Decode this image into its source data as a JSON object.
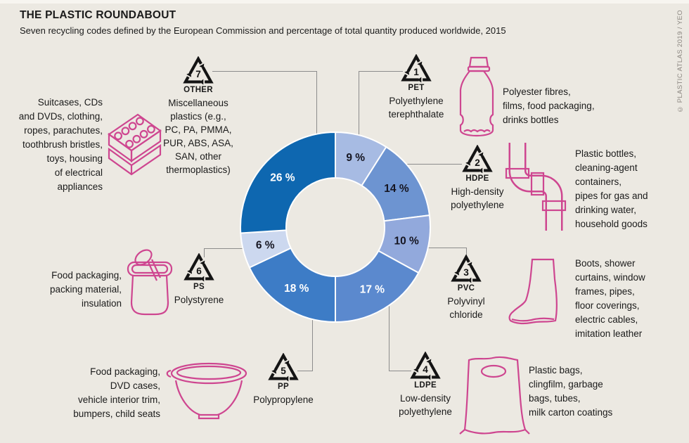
{
  "header": {
    "title": "THE PLASTIC ROUNDABOUT",
    "subtitle": "Seven recycling codes defined by the European Commission and percentage of total quantity produced worldwide, 2015"
  },
  "credit": "© PLASTIC ATLAS 2019 / YEO",
  "colors": {
    "background": "#ECE9E2",
    "illustration_pink": "#CE4690",
    "symbol_black": "#141414",
    "connector_gray": "#8C8C8C",
    "text": "#1A1A1A",
    "segment_gap": "#FFFFFF"
  },
  "chart_data": {
    "type": "pie",
    "subtype": "donut",
    "title": "Share of total plastic quantity produced worldwide, 2015",
    "units": "%",
    "direction": "clockwise",
    "start_angle_deg_from_top": 0,
    "value_label_format": "{value} %",
    "total": 100,
    "segments": [
      {
        "code": 1,
        "abbr": "PET",
        "value": 9,
        "color": "#A7BBE3",
        "label_color": "#161622",
        "name": "Polyethylene\nterephthalate",
        "uses": "Polyester fibres,\nfilms, food packaging,\ndrinks bottles"
      },
      {
        "code": 2,
        "abbr": "HDPE",
        "value": 14,
        "color": "#6D94D1",
        "label_color": "#161622",
        "name": "High-density\npolyethylene",
        "uses": "Plastic bottles,\ncleaning-agent\ncontainers,\npipes for gas and\ndrinking water,\nhousehold goods"
      },
      {
        "code": 3,
        "abbr": "PVC",
        "value": 10,
        "color": "#92A9DC",
        "label_color": "#161622",
        "name": "Polyvinyl\nchloride",
        "uses": "Boots, shower\ncurtains, window\nframes, pipes,\nfloor coverings,\nelectric cables,\nimitation leather"
      },
      {
        "code": 4,
        "abbr": "LDPE",
        "value": 17,
        "color": "#5B89CE",
        "label_color": "#FFFFFF",
        "name": "Low-density\npolyethylene",
        "uses": "Plastic bags,\nclingfilm, garbage\nbags, tubes,\nmilk carton coatings"
      },
      {
        "code": 5,
        "abbr": "PP",
        "value": 18,
        "color": "#3D7CC6",
        "label_color": "#FFFFFF",
        "name": "Polypropylene",
        "uses": "Food packaging,\nDVD cases,\nvehicle interior trim,\nbumpers, child seats"
      },
      {
        "code": 6,
        "abbr": "PS",
        "value": 6,
        "color": "#CCD8EF",
        "label_color": "#161622",
        "name": "Polystyrene",
        "uses": "Food packaging,\npacking material,\ninsulation"
      },
      {
        "code": 7,
        "abbr": "OTHER",
        "value": 26,
        "color": "#0E67B0",
        "label_color": "#FFFFFF",
        "name": "Miscellaneous\nplastics (e.g.,\nPC, PA, PMMA,\nPUR, ABS, ASA,\nSAN, other\nthermoplastics)",
        "uses": "Suitcases, CDs\nand DVDs, clothing,\nropes, parachutes,\ntoothbrush bristles,\ntoys, housing\nof electrical\nappliances"
      }
    ]
  }
}
